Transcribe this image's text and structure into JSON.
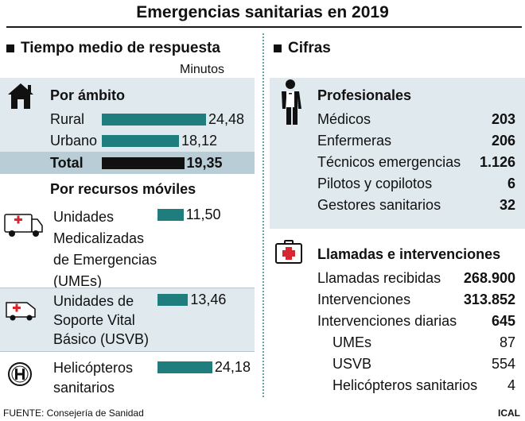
{
  "title": "Emergencias sanitarias en 2019",
  "left": {
    "heading": "Tiempo medio de respuesta",
    "unit": "Minutos",
    "ambito": {
      "heading": "Por ámbito",
      "rows": [
        {
          "label": "Rural",
          "value": "24,48"
        },
        {
          "label": "Urbano",
          "value": "18,12"
        }
      ],
      "total": {
        "label": "Total",
        "value": "19,35"
      }
    },
    "recursos": {
      "heading": "Por recursos móviles",
      "items": [
        {
          "lines": [
            "Unidades",
            "Medicalizadas",
            "de Emergencias",
            "(UMEs)"
          ],
          "value": "11,50",
          "icon": "ambulance-icon"
        },
        {
          "lines": [
            "Unidades de",
            "Soporte Vital",
            "Básico (USVB)"
          ],
          "value": "13,46",
          "icon": "van-ambulance-icon"
        },
        {
          "lines": [
            "Helicópteros",
            "sanitarios"
          ],
          "value": "24,18",
          "icon": "helipad-icon"
        }
      ]
    }
  },
  "right": {
    "heading": "Cifras",
    "profesionales": {
      "heading": "Profesionales",
      "icon": "doctor-icon",
      "rows": [
        {
          "label": "Médicos",
          "value": "203"
        },
        {
          "label": "Enfermeras",
          "value": "206"
        },
        {
          "label": "Técnicos emergencias",
          "value": "1.126"
        },
        {
          "label": "Pilotos y copilotos",
          "value": "6"
        },
        {
          "label": "Gestores sanitarios",
          "value": "32"
        }
      ]
    },
    "llamadas": {
      "heading": "Llamadas e intervenciones",
      "icon": "medical-kit-icon",
      "rows": [
        {
          "label": "Llamadas recibidas",
          "value": "268.900"
        },
        {
          "label": "Intervenciones",
          "value": "313.852"
        },
        {
          "label": "Intervenciones diarias",
          "value": "645"
        }
      ],
      "sub_rows": [
        {
          "label": "UMEs",
          "value": "87"
        },
        {
          "label": "USVB",
          "value": "554"
        },
        {
          "label": "Helicópteros sanitarios",
          "value": "4"
        }
      ]
    }
  },
  "footer": {
    "source": "FUENTE: Consejería de Sanidad",
    "credit": "ICAL"
  },
  "chart_data": {
    "type": "bar",
    "categories": [
      "Rural",
      "Urbano",
      "Total",
      "Unidades Medicalizadas de Emergencias (UMEs)",
      "Unidades de Soporte Vital Básico (USVB)",
      "Helicópteros sanitarios"
    ],
    "values": [
      24.48,
      18.12,
      19.35,
      11.5,
      13.46,
      24.18
    ],
    "ylabel": "Minutos",
    "orientation": "horizontal",
    "grid": false,
    "colors": {
      "bar": "#1f7d7d",
      "total": "#111111",
      "panel": "#dfe9ee",
      "total_band": "#b9cdd6"
    }
  }
}
